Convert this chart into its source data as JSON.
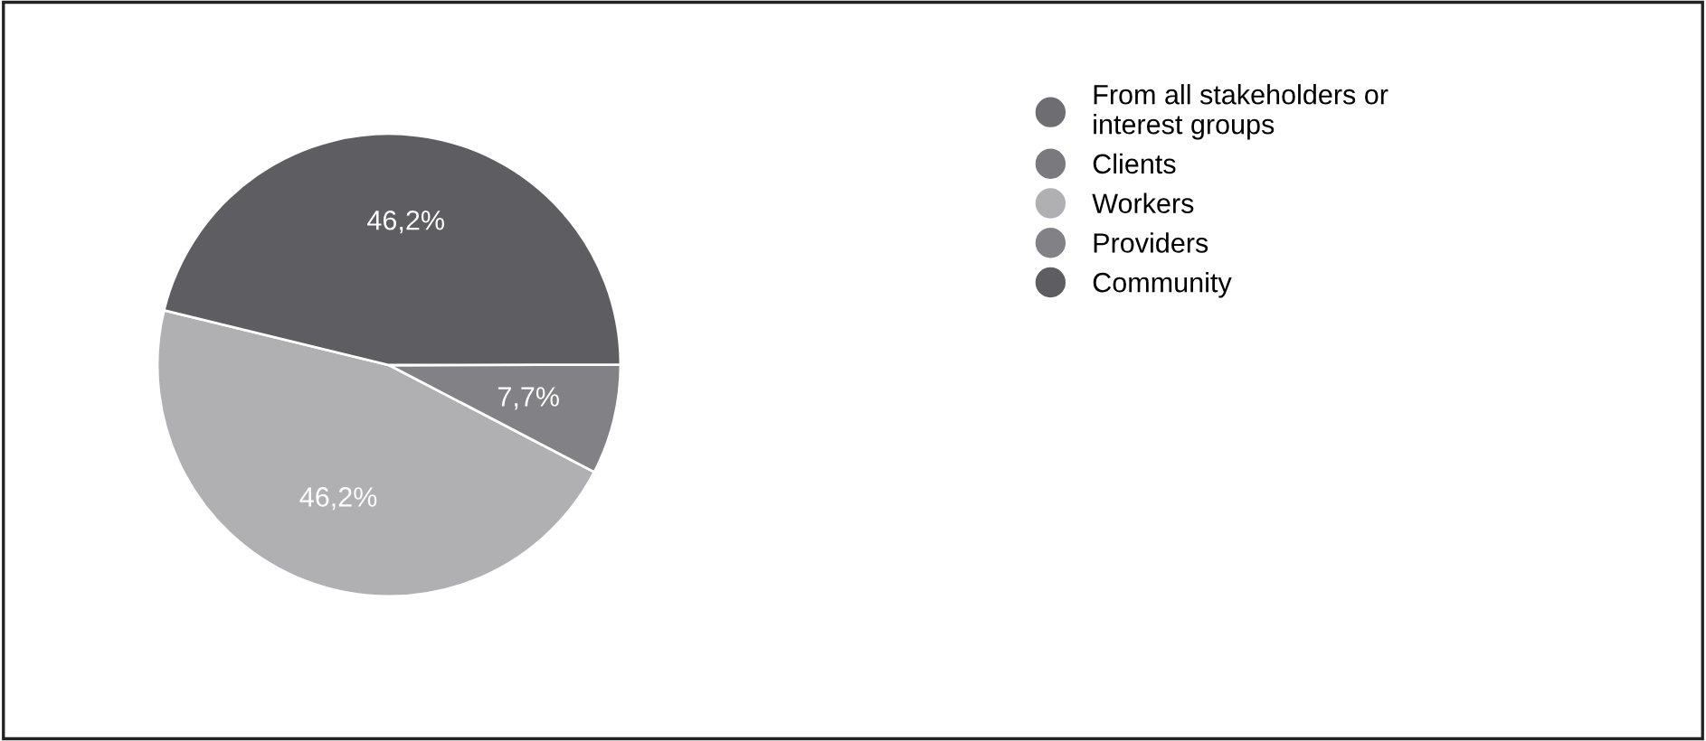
{
  "chart_data": {
    "type": "pie",
    "categories": [
      "From all stakeholders or interest groups",
      "Clients",
      "Workers",
      "Providers",
      "Community"
    ],
    "values": [
      0,
      0,
      46.2,
      7.7,
      46.2
    ],
    "colors": [
      "#6e6e72",
      "#7a7a7e",
      "#b0b0b3",
      "#828286",
      "#5e5e62"
    ],
    "value_labels": [
      null,
      null,
      "46,2%",
      "7,7%",
      "46,2%"
    ],
    "legend": "right"
  }
}
